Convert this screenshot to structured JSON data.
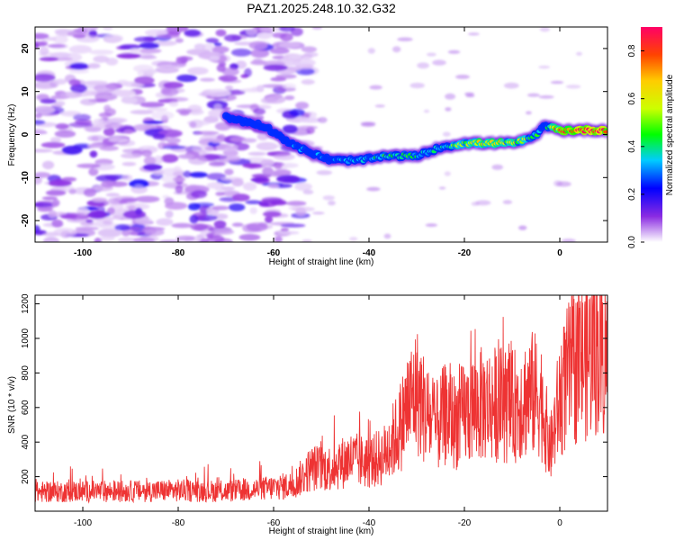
{
  "title": "PAZ1.2025.248.10.32.G32",
  "chart_data": [
    {
      "type": "heatmap",
      "xlabel": "Height of straight line (km)",
      "ylabel": "Frequency (Hz)",
      "xlim": [
        -110,
        10
      ],
      "ylim": [
        -25,
        25
      ],
      "xticks": [
        -100,
        -80,
        -60,
        -40,
        -20,
        0
      ],
      "yticks": [
        -20,
        -10,
        0,
        10,
        20
      ],
      "colorbar": {
        "label": "Normalized spectral amplitude",
        "range": [
          0,
          0.9
        ],
        "ticks": [
          0.0,
          0.2,
          0.4,
          0.6,
          0.8
        ]
      },
      "ridge": {
        "x": [
          -70,
          -62,
          -55,
          -48,
          -42,
          -36,
          -30,
          -25,
          -20,
          -15,
          -10,
          -6,
          -3,
          0,
          5,
          10
        ],
        "y": [
          4,
          2,
          -3,
          -6,
          -6,
          -5,
          -5,
          -3,
          -2,
          -2,
          -2,
          -1,
          2,
          1,
          1,
          1
        ],
        "amplitude": [
          0.15,
          0.2,
          0.3,
          0.3,
          0.35,
          0.45,
          0.4,
          0.35,
          0.6,
          0.65,
          0.6,
          0.5,
          0.3,
          0.85,
          0.9,
          0.9
        ]
      }
    },
    {
      "type": "line",
      "xlabel": "Height of straight line (km)",
      "ylabel": "SNR (10 * v/v)",
      "xlim": [
        -110,
        10
      ],
      "ylim": [
        0,
        1250
      ],
      "xticks": [
        -100,
        -80,
        -60,
        -40,
        -20,
        0
      ],
      "yticks": [
        200,
        400,
        600,
        800,
        1000,
        1200
      ],
      "color": "#ee3333",
      "series": [
        {
          "name": "SNR",
          "x": [
            -110,
            -100,
            -90,
            -80,
            -70,
            -62,
            -56,
            -52,
            -48,
            -44,
            -40,
            -37,
            -34,
            -32,
            -30,
            -28,
            -26,
            -24,
            -22,
            -20,
            -18,
            -16,
            -14,
            -12,
            -10,
            -8,
            -6,
            -4,
            -2,
            0,
            2,
            4,
            6,
            8,
            10
          ],
          "y": [
            110,
            115,
            115,
            120,
            115,
            130,
            150,
            250,
            250,
            300,
            280,
            320,
            450,
            600,
            700,
            560,
            480,
            560,
            520,
            560,
            600,
            620,
            620,
            620,
            600,
            640,
            680,
            660,
            350,
            650,
            800,
            850,
            900,
            950,
            880
          ]
        }
      ]
    }
  ]
}
